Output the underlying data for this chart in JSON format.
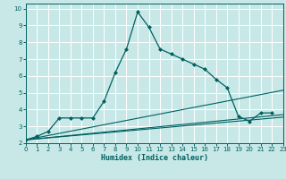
{
  "xlabel": "Humidex (Indice chaleur)",
  "bg_color": "#c8e8e8",
  "grid_color": "#ffffff",
  "line_color": "#006060",
  "xlim": [
    0,
    23
  ],
  "ylim": [
    2,
    10.3
  ],
  "xticks": [
    0,
    1,
    2,
    3,
    4,
    5,
    6,
    7,
    8,
    9,
    10,
    11,
    12,
    13,
    14,
    15,
    16,
    17,
    18,
    19,
    20,
    21,
    22,
    23
  ],
  "yticks": [
    2,
    3,
    4,
    5,
    6,
    7,
    8,
    9,
    10
  ],
  "main_x": [
    0,
    1,
    2,
    3,
    4,
    5,
    6,
    7,
    8,
    9,
    10,
    11,
    12,
    13,
    14,
    15,
    16,
    17,
    18,
    19,
    20,
    21,
    22
  ],
  "main_y": [
    2.2,
    2.4,
    2.7,
    3.5,
    3.5,
    3.5,
    3.5,
    4.5,
    6.2,
    7.6,
    9.8,
    8.9,
    7.6,
    7.3,
    7.0,
    6.7,
    6.4,
    5.8,
    5.3,
    3.6,
    3.3,
    3.8,
    3.8
  ],
  "line1_x": [
    0,
    23
  ],
  "line1_y": [
    2.2,
    5.15
  ],
  "line2_x": [
    0,
    23
  ],
  "line2_y": [
    2.2,
    3.7
  ],
  "line3_x": [
    0,
    23
  ],
  "line3_y": [
    2.2,
    3.55
  ]
}
